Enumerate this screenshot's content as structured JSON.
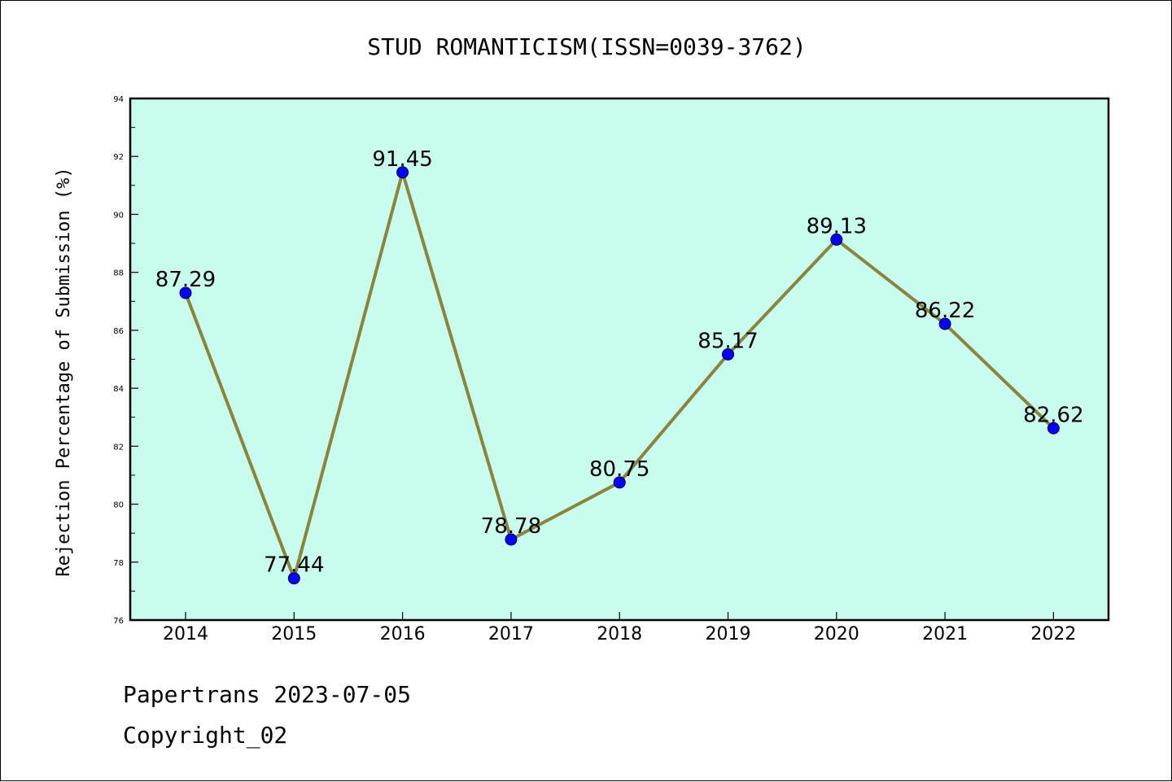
{
  "chart_data": {
    "type": "line",
    "title": "STUD ROMANTICISM(ISSN=0039-3762)",
    "xlabel": "",
    "ylabel": "Rejection Percentage of Submission (%)",
    "categories": [
      "2014",
      "2015",
      "2016",
      "2017",
      "2018",
      "2019",
      "2020",
      "2021",
      "2022"
    ],
    "values": [
      87.29,
      77.44,
      91.45,
      78.78,
      80.75,
      85.17,
      89.13,
      86.22,
      82.62
    ],
    "data_labels": [
      "87.29",
      "77.44",
      "91.45",
      "78.78",
      "80.75",
      "85.17",
      "89.13",
      "86.22",
      "82.62"
    ],
    "ylim": [
      76,
      94
    ],
    "yticks": [
      "76",
      "78",
      "80",
      "82",
      "84",
      "86",
      "88",
      "90",
      "92",
      "94"
    ],
    "grid": false,
    "legend": "none",
    "colors": {
      "plot_background": "#c7fcee",
      "line": "#8c8539",
      "marker": "#0000ff"
    }
  },
  "footer": {
    "line1": "Papertrans 2023-07-05",
    "line2": "Copyright_02"
  }
}
